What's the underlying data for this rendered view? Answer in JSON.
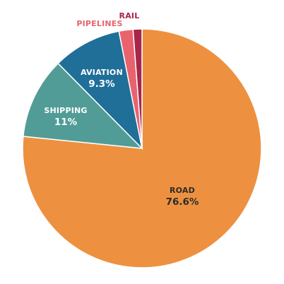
{
  "chart_data": {
    "type": "pie",
    "slices": [
      {
        "label": "ROAD",
        "value": 76.6,
        "value_label": "76.6%",
        "color": "#ed9140",
        "label_color": "#2b2b2b"
      },
      {
        "label": "SHIPPING",
        "value": 11,
        "value_label": "11%",
        "color": "#519c97",
        "label_color": "#ffffff"
      },
      {
        "label": "AVIATION",
        "value": 9.3,
        "value_label": "9.3%",
        "color": "#1f6f99",
        "label_color": "#ffffff"
      },
      {
        "label": "PIPELINES",
        "value": 1.9,
        "value_label": "",
        "color": "#e8636e",
        "label_color": "#e8636e"
      },
      {
        "label": "RAIL",
        "value": 1.2,
        "value_label": "",
        "color": "#a8264a",
        "label_color": "#a8264a"
      }
    ]
  }
}
